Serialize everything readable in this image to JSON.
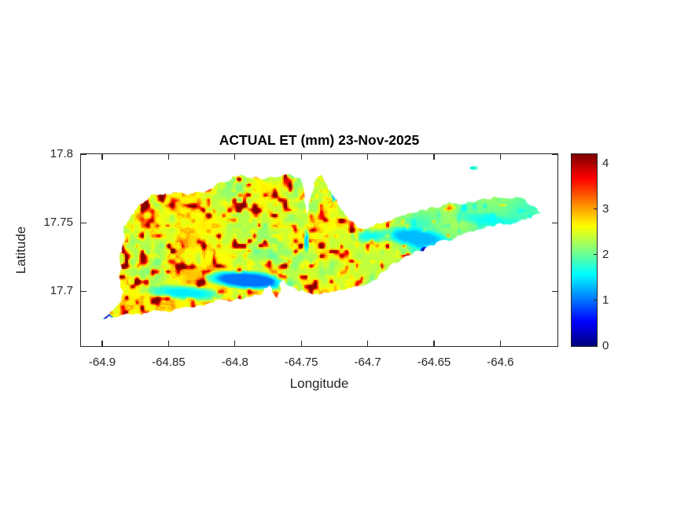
{
  "chart_data": {
    "type": "heatmap",
    "title": "ACTUAL ET (mm) 23-Nov-2025",
    "xlabel": "Longitude",
    "ylabel": "Latitude",
    "xlim": [
      -64.916,
      -64.557
    ],
    "ylim": [
      17.66,
      17.8
    ],
    "xticks": [
      -64.9,
      -64.85,
      -64.8,
      -64.75,
      -64.7,
      -64.65,
      -64.6
    ],
    "xtick_labels": [
      "-64.9",
      "-64.85",
      "-64.8",
      "-64.75",
      "-64.7",
      "-64.65",
      "-64.6"
    ],
    "yticks": [
      17.8,
      17.75,
      17.7
    ],
    "ytick_labels": [
      "17.8",
      "17.75",
      "17.7"
    ],
    "grid": false,
    "axes_color": "#262626",
    "colorbar": {
      "min": 0,
      "max": 4.2,
      "ticks": [
        0,
        1,
        2,
        3,
        4
      ],
      "tick_labels": [
        "0",
        "1",
        "2",
        "3",
        "4"
      ],
      "colormap": "jet",
      "stops": [
        "#00008f",
        "#0000ff",
        "#00ffff",
        "#80ff80",
        "#ffff00",
        "#ff8000",
        "#ff0000",
        "#850000"
      ],
      "stop_positions": [
        0,
        0.11,
        0.375,
        0.5,
        0.625,
        0.75,
        0.875,
        1
      ]
    },
    "field_description": "actual evapotranspiration raster over an island; high (red 3-4.2) speckled west half, green base ~2, cyan/blue ~1-1.6 coastal bands, dark blue ~0.1-0.25 extremes",
    "island_outline": [
      [
        -64.9025,
        17.6793
      ],
      [
        -64.8912,
        17.6868
      ],
      [
        -64.8871,
        17.6914
      ],
      [
        -64.8841,
        17.6989
      ],
      [
        -64.8865,
        17.7081
      ],
      [
        -64.8853,
        17.7167
      ],
      [
        -64.8871,
        17.7253
      ],
      [
        -64.8847,
        17.7334
      ],
      [
        -64.8829,
        17.7408
      ],
      [
        -64.8841,
        17.7471
      ],
      [
        -64.8788,
        17.754
      ],
      [
        -64.8741,
        17.7603
      ],
      [
        -64.8681,
        17.7655
      ],
      [
        -64.8604,
        17.7707
      ],
      [
        -64.8522,
        17.7713
      ],
      [
        -64.8445,
        17.7724
      ],
      [
        -64.8374,
        17.7707
      ],
      [
        -64.8297,
        17.7724
      ],
      [
        -64.8232,
        17.7718
      ],
      [
        -64.8167,
        17.7747
      ],
      [
        -64.809,
        17.7793
      ],
      [
        -64.8019,
        17.7839
      ],
      [
        -64.7942,
        17.785
      ],
      [
        -64.7871,
        17.7822
      ],
      [
        -64.7794,
        17.7816
      ],
      [
        -64.7717,
        17.7833
      ],
      [
        -64.764,
        17.785
      ],
      [
        -64.7569,
        17.7844
      ],
      [
        -64.751,
        17.7827
      ],
      [
        -64.7474,
        17.769
      ],
      [
        -64.7456,
        17.7557
      ],
      [
        -64.7421,
        17.7713
      ],
      [
        -64.7391,
        17.7816
      ],
      [
        -64.735,
        17.785
      ],
      [
        -64.7314,
        17.7787
      ],
      [
        -64.7267,
        17.7707
      ],
      [
        -64.7213,
        17.7619
      ],
      [
        -64.7154,
        17.7546
      ],
      [
        -64.7077,
        17.746
      ],
      [
        -64.7,
        17.7454
      ],
      [
        -64.6941,
        17.7494
      ],
      [
        -64.6858,
        17.7506
      ],
      [
        -64.6781,
        17.754
      ],
      [
        -64.6698,
        17.7569
      ],
      [
        -64.6609,
        17.7592
      ],
      [
        -64.652,
        17.7615
      ],
      [
        -64.6432,
        17.7632
      ],
      [
        -64.6337,
        17.7644
      ],
      [
        -64.6242,
        17.7655
      ],
      [
        -64.6148,
        17.7672
      ],
      [
        -64.6053,
        17.769
      ],
      [
        -64.5964,
        17.7678
      ],
      [
        -64.5881,
        17.769
      ],
      [
        -64.5804,
        17.7655
      ],
      [
        -64.5739,
        17.7615
      ],
      [
        -64.5692,
        17.7569
      ],
      [
        -64.5769,
        17.7534
      ],
      [
        -64.5858,
        17.7512
      ],
      [
        -64.5952,
        17.7489
      ],
      [
        -64.6047,
        17.7471
      ],
      [
        -64.6142,
        17.7454
      ],
      [
        -64.623,
        17.7437
      ],
      [
        -64.6319,
        17.7408
      ],
      [
        -64.6408,
        17.7374
      ],
      [
        -64.6496,
        17.7334
      ],
      [
        -64.6579,
        17.7293
      ],
      [
        -64.6662,
        17.727
      ],
      [
        -64.6745,
        17.7236
      ],
      [
        -64.6828,
        17.7195
      ],
      [
        -64.6905,
        17.7132
      ],
      [
        -64.6976,
        17.7069
      ],
      [
        -64.7053,
        17.704
      ],
      [
        -64.713,
        17.7023
      ],
      [
        -64.7207,
        17.7012
      ],
      [
        -64.729,
        17.6989
      ],
      [
        -64.7373,
        17.6977
      ],
      [
        -64.7456,
        17.6989
      ],
      [
        -64.7527,
        17.7
      ],
      [
        -64.7586,
        17.7034
      ],
      [
        -64.7628,
        17.7081
      ],
      [
        -64.7669,
        17.7052
      ],
      [
        -64.7652,
        17.7
      ],
      [
        -64.7675,
        17.6931
      ],
      [
        -64.7717,
        17.6989
      ],
      [
        -64.774,
        17.7046
      ],
      [
        -64.7782,
        17.7023
      ],
      [
        -64.7811,
        17.6971
      ],
      [
        -64.7894,
        17.696
      ],
      [
        -64.7983,
        17.6948
      ],
      [
        -64.8072,
        17.6937
      ],
      [
        -64.8167,
        17.6914
      ],
      [
        -64.8261,
        17.6897
      ],
      [
        -64.8356,
        17.6885
      ],
      [
        -64.8457,
        17.6868
      ],
      [
        -64.8557,
        17.6856
      ],
      [
        -64.8658,
        17.6844
      ],
      [
        -64.8758,
        17.6833
      ],
      [
        -64.8859,
        17.6827
      ],
      [
        -64.8948,
        17.6821
      ]
    ],
    "islets": [
      {
        "name": "detached-speck",
        "lon": -64.6201,
        "lat": 17.7899,
        "rx": 0.003,
        "ry": 0.0014,
        "value": 1.8
      }
    ],
    "features": [
      {
        "name": "southwest-dark-blue-spike",
        "lon": -64.8977,
        "lat": 17.6821,
        "rx": 0.0077,
        "ry": 0.0029,
        "rot": 25,
        "value": 0.25,
        "strength": 0.95
      },
      {
        "name": "south-coast-deep-blue-band",
        "lon": -64.7906,
        "lat": 17.7081,
        "rx": 0.0367,
        "ry": 0.0075,
        "rot": 4,
        "value": 1.0,
        "strength": 0.85
      },
      {
        "name": "south-coast-west-cyan-band",
        "lon": -64.838,
        "lat": 17.6989,
        "rx": 0.0343,
        "ry": 0.0063,
        "rot": 4,
        "value": 1.5,
        "strength": 0.7
      },
      {
        "name": "east-cyan-band",
        "lon": -64.6634,
        "lat": 17.7391,
        "rx": 0.0296,
        "ry": 0.008,
        "rot": 8,
        "value": 1.3,
        "strength": 0.8
      },
      {
        "name": "east-cyan-band-2",
        "lon": -64.6976,
        "lat": 17.7402,
        "rx": 0.0166,
        "ry": 0.0063,
        "rot": 0,
        "value": 1.55,
        "strength": 0.6
      },
      {
        "name": "east-peninsula-cyan-band",
        "lon": -64.6089,
        "lat": 17.7517,
        "rx": 0.0284,
        "ry": 0.0052,
        "rot": 8,
        "value": 1.6,
        "strength": 0.55
      },
      {
        "name": "harbor-cyan-streak",
        "lon": -64.7462,
        "lat": 17.7368,
        "rx": 0.0024,
        "ry": 0.0098,
        "rot": 0,
        "value": 1.3,
        "strength": 0.7
      },
      {
        "name": "northeast-blue-dash",
        "lon": -64.7255,
        "lat": 17.7701,
        "rx": 0.0018,
        "ry": 0.0063,
        "rot": 0,
        "value": 1.2,
        "strength": 0.75
      },
      {
        "name": "lagoon-hook-orange",
        "lon": -64.7681,
        "lat": 17.6965,
        "rx": 0.003,
        "ry": 0.0052,
        "rot": -35,
        "value": 3.4,
        "strength": 0.9
      },
      {
        "name": "south-dark-blue-spot",
        "lon": -64.6568,
        "lat": 17.7293,
        "rx": 0.0041,
        "ry": 0.0034,
        "rot": 0,
        "value": 0.12,
        "strength": 0.95
      }
    ],
    "texture": {
      "seed": 1337,
      "west_base": 2.45,
      "east_base": 1.95,
      "full_speckle_west_of_lon": -64.73,
      "sparse_speckle_east_of_lon": -64.6,
      "speckle_west_threshold": 0.6,
      "speckle_east_threshold": 0.84,
      "speckle_boost": 9,
      "cyan_dip_threshold": 0.34,
      "low_freq_amp": 0.3
    }
  }
}
